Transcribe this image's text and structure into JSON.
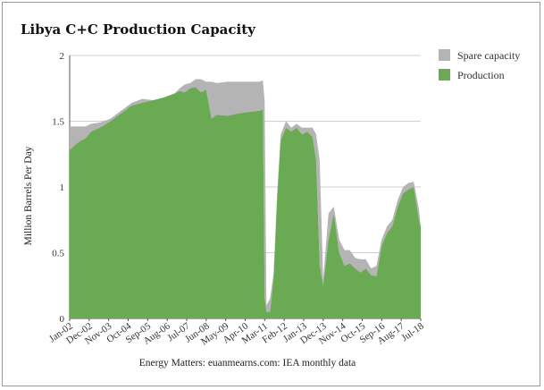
{
  "chart_data": {
    "type": "area",
    "title": "Libya C+C Production Capacity",
    "xlabel": "",
    "ylabel": "Million Barrels Per Day",
    "source": "Energy Matters: euanmearns.com: IEA monthly data",
    "ylim": [
      0,
      2
    ],
    "yticks": [
      0,
      0.5,
      1,
      1.5,
      2
    ],
    "ytick_labels": [
      "0",
      "0.5",
      "1",
      "1.5",
      "2"
    ],
    "x_categories": [
      "Jan-02",
      "Dec-02",
      "Nov-03",
      "Oct-04",
      "Sep-05",
      "Aug-06",
      "Jul-07",
      "Jun-08",
      "May-09",
      "Apr-10",
      "Mar-11",
      "Feb-12",
      "Jan-13",
      "Dec-13",
      "Nov-14",
      "Oct-15",
      "Sep-16",
      "Aug-17",
      "Jul-18"
    ],
    "grid": true,
    "legend_position": "right",
    "stacked": true,
    "x_dates": [
      "2002-01",
      "2002-04",
      "2002-07",
      "2002-10",
      "2003-01",
      "2003-06",
      "2003-12",
      "2004-06",
      "2004-12",
      "2005-06",
      "2005-12",
      "2006-06",
      "2006-12",
      "2007-03",
      "2007-06",
      "2007-09",
      "2007-12",
      "2008-03",
      "2008-06",
      "2008-09",
      "2008-12",
      "2009-06",
      "2009-12",
      "2010-06",
      "2010-12",
      "2011-02",
      "2011-03",
      "2011-04",
      "2011-06",
      "2011-08",
      "2011-10",
      "2011-12",
      "2012-03",
      "2012-06",
      "2012-09",
      "2012-12",
      "2013-03",
      "2013-06",
      "2013-08",
      "2013-10",
      "2013-12",
      "2014-03",
      "2014-06",
      "2014-09",
      "2014-12",
      "2015-03",
      "2015-06",
      "2015-09",
      "2015-12",
      "2016-03",
      "2016-06",
      "2016-09",
      "2016-12",
      "2017-03",
      "2017-06",
      "2017-09",
      "2017-12",
      "2018-03",
      "2018-06",
      "2018-07"
    ],
    "series": [
      {
        "name": "Production",
        "color": "#6aaa52",
        "values": [
          1.28,
          1.32,
          1.35,
          1.37,
          1.42,
          1.45,
          1.5,
          1.56,
          1.62,
          1.64,
          1.66,
          1.68,
          1.71,
          1.73,
          1.72,
          1.75,
          1.76,
          1.72,
          1.74,
          1.52,
          1.55,
          1.54,
          1.56,
          1.57,
          1.58,
          1.59,
          0.15,
          0.05,
          0.05,
          0.3,
          0.9,
          1.35,
          1.45,
          1.42,
          1.45,
          1.4,
          1.42,
          1.38,
          1.2,
          0.4,
          0.25,
          0.6,
          0.8,
          0.5,
          0.4,
          0.42,
          0.38,
          0.35,
          0.38,
          0.33,
          0.32,
          0.55,
          0.65,
          0.7,
          0.85,
          0.95,
          0.98,
          1.0,
          0.75,
          0.7
        ]
      },
      {
        "name": "Spare capacity",
        "color": "#b4b4b4",
        "values": [
          0.18,
          0.14,
          0.11,
          0.09,
          0.06,
          0.04,
          0.02,
          0.02,
          0.02,
          0.03,
          0.0,
          0.0,
          0.0,
          0.02,
          0.06,
          0.04,
          0.06,
          0.1,
          0.06,
          0.28,
          0.24,
          0.26,
          0.24,
          0.23,
          0.22,
          0.22,
          1.5,
          0.05,
          0.1,
          0.05,
          0.05,
          0.05,
          0.05,
          0.03,
          0.03,
          0.05,
          0.03,
          0.07,
          0.2,
          0.8,
          0.05,
          0.2,
          0.05,
          0.1,
          0.12,
          0.1,
          0.08,
          0.1,
          0.07,
          0.05,
          0.08,
          0.05,
          0.05,
          0.05,
          0.05,
          0.05,
          0.05,
          0.04,
          0.08,
          0.0
        ]
      }
    ]
  }
}
